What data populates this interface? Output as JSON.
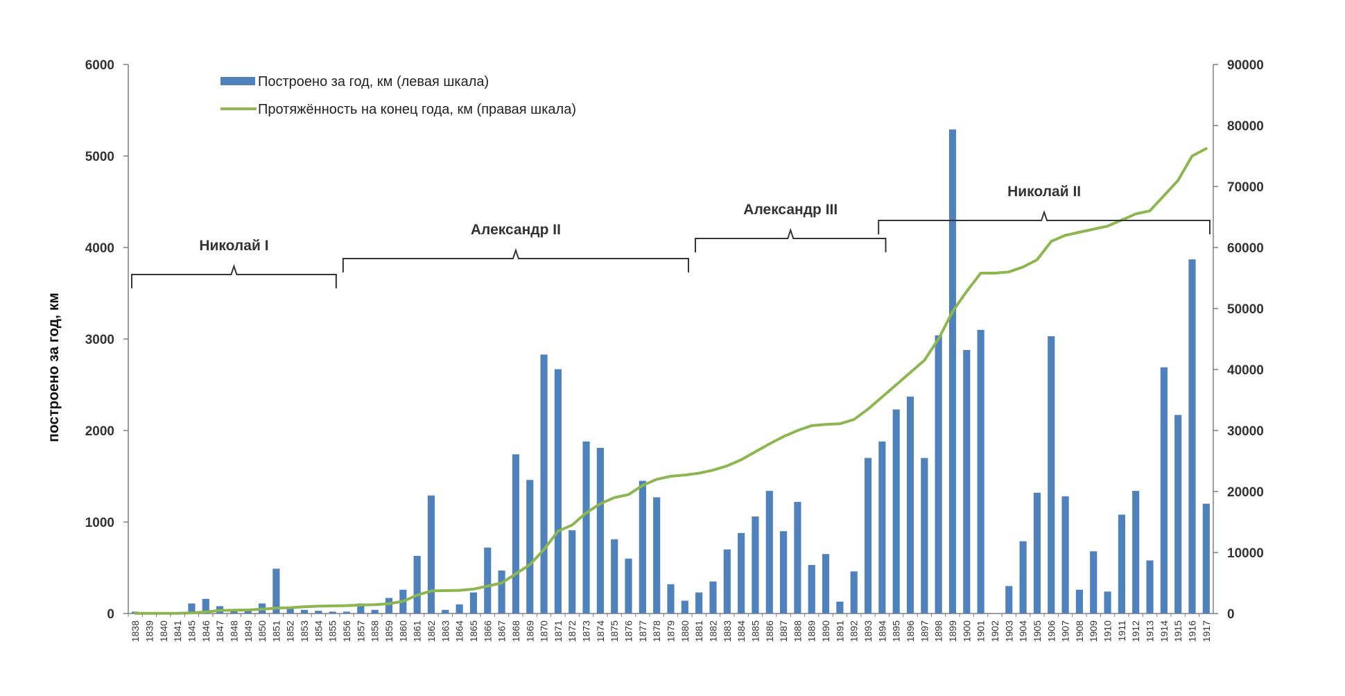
{
  "chart_data": {
    "type": "bar+line",
    "title": "",
    "ylabel_left": "построено за год, км",
    "ylim_left": [
      0,
      6000
    ],
    "yticks_left": [
      "0",
      "1000",
      "2000",
      "3000",
      "4000",
      "5000",
      "6000"
    ],
    "ylim_right": [
      0,
      90000
    ],
    "yticks_right": [
      "0",
      "10000",
      "20000",
      "30000",
      "40000",
      "50000",
      "60000",
      "70000",
      "80000",
      "90000"
    ],
    "legend": {
      "position": "top-left",
      "bar_label": "Построено за год, км (левая шкала)",
      "line_label": "Протяжённость на конец года, км (правая шкала)"
    },
    "categories": [
      "1838",
      "1839",
      "1840",
      "1841",
      "1845",
      "1846",
      "1847",
      "1848",
      "1849",
      "1850",
      "1851",
      "1852",
      "1853",
      "1854",
      "1855",
      "1856",
      "1857",
      "1858",
      "1859",
      "1860",
      "1861",
      "1862",
      "1863",
      "1864",
      "1865",
      "1866",
      "1867",
      "1868",
      "1869",
      "1870",
      "1871",
      "1872",
      "1873",
      "1874",
      "1875",
      "1876",
      "1877",
      "1878",
      "1879",
      "1880",
      "1881",
      "1882",
      "1883",
      "1884",
      "1885",
      "1886",
      "1887",
      "1888",
      "1889",
      "1890",
      "1891",
      "1892",
      "1893",
      "1894",
      "1895",
      "1896",
      "1897",
      "1898",
      "1899",
      "1900",
      "1901",
      "1902",
      "1903",
      "1904",
      "1905",
      "1906",
      "1907",
      "1908",
      "1909",
      "1910",
      "1911",
      "1912",
      "1913",
      "1914",
      "1915",
      "1916",
      "1917"
    ],
    "xtick_labels": [
      "1838",
      "1839",
      "1840",
      "1841",
      "1845",
      "1846",
      "1847",
      "1848",
      "1849",
      "1850",
      "1851",
      "1852",
      "1853",
      "1854",
      "1855",
      "1856",
      "1857",
      "1858",
      "1859",
      "1860",
      "1861",
      "1862",
      "1863",
      "1864",
      "1865",
      "1866",
      "1867",
      "1868",
      "1869",
      "1870",
      "1871",
      "1872",
      "1873",
      "1874",
      "1875",
      "1876",
      "1877",
      "1878",
      "1879",
      "1880",
      "1881",
      "1882",
      "1883",
      "1884",
      "1885",
      "1886",
      "1887",
      "1888",
      "1889",
      "1890",
      "1891",
      "1892",
      "1893",
      "1894",
      "1895",
      "1896",
      "1897",
      "1898",
      "1899",
      "1900",
      "1901",
      "1902",
      "1903",
      "1904",
      "1905",
      "1906",
      "1907",
      "1908",
      "1909",
      "1910",
      "1911",
      "1912",
      "1913",
      "1914",
      "1915",
      "1916",
      "1917"
    ],
    "series": [
      {
        "name": "Построено за год, км (левая шкала)",
        "type": "bar",
        "axis": "left",
        "color": "#4f81bd",
        "values": [
          20,
          0,
          0,
          0,
          110,
          160,
          80,
          30,
          30,
          110,
          490,
          60,
          40,
          30,
          20,
          20,
          110,
          40,
          170,
          260,
          630,
          1290,
          40,
          100,
          230,
          720,
          470,
          1740,
          1460,
          2830,
          2670,
          910,
          1880,
          1810,
          810,
          600,
          1450,
          1270,
          320,
          140,
          230,
          350,
          700,
          880,
          1060,
          1340,
          900,
          1220,
          530,
          650,
          130,
          460,
          1700,
          1880,
          2230,
          2370,
          1700,
          3040,
          5290,
          2880,
          3100,
          0,
          300,
          790,
          1320,
          3030,
          1280,
          260,
          680,
          240,
          1080,
          1340,
          580,
          2690,
          2170,
          3870,
          1200
        ]
      },
      {
        "name": "Протяжённость на конец года, км (правая шкала)",
        "type": "line",
        "axis": "right",
        "color": "#8cb650",
        "values": [
          30,
          30,
          30,
          30,
          100,
          250,
          500,
          550,
          580,
          700,
          900,
          950,
          1100,
          1200,
          1250,
          1300,
          1400,
          1450,
          1600,
          2000,
          3000,
          3700,
          3750,
          3800,
          4000,
          4500,
          5000,
          6500,
          8000,
          10500,
          13500,
          14500,
          16500,
          18000,
          19000,
          19500,
          21000,
          22000,
          22500,
          22700,
          23000,
          23500,
          24200,
          25200,
          26500,
          27800,
          29000,
          30000,
          30800,
          31000,
          31100,
          31800,
          33500,
          35500,
          37500,
          39500,
          41500,
          45000,
          49500,
          52800,
          55800,
          55800,
          56000,
          56800,
          58000,
          61000,
          62000,
          62500,
          63000,
          63500,
          64500,
          65500,
          66000,
          68500,
          71000,
          75000,
          76200
        ]
      }
    ],
    "annotations": [
      {
        "label": "Николай I",
        "from": "1838",
        "to": "1855"
      },
      {
        "label": "Александр II",
        "from": "1856",
        "to": "1880"
      },
      {
        "label": "Александр III",
        "from": "1881",
        "to": "1894"
      },
      {
        "label": "Николай II",
        "from": "1894",
        "to": "1917"
      }
    ]
  }
}
